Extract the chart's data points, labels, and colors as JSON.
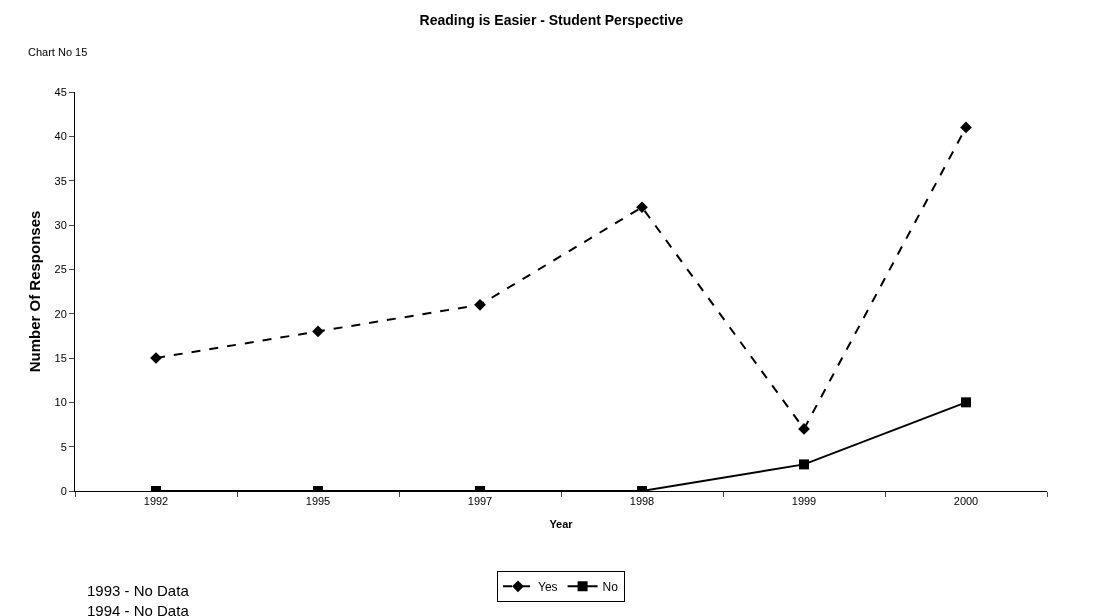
{
  "chart_data": {
    "type": "line",
    "title": "Reading is Easier - Student Perspective",
    "xlabel": "Year",
    "ylabel": "Number Of Responses",
    "annotations": [
      "Chart No 15",
      "1993 - No Data",
      "1994 - No Data"
    ],
    "categories": [
      "1992",
      "1995",
      "1997",
      "1998",
      "1999",
      "2000"
    ],
    "series": [
      {
        "name": "Yes",
        "color": "#000000",
        "values": [
          15,
          18,
          21,
          32,
          7,
          41
        ],
        "marker": "diamond",
        "line_style": "dashed"
      },
      {
        "name": "No",
        "color": "#000000",
        "values": [
          0,
          0,
          0,
          0,
          3,
          10
        ],
        "marker": "square",
        "line_style": "solid"
      }
    ],
    "ylim": [
      0,
      45
    ],
    "yticks": [
      0,
      5,
      10,
      15,
      20,
      25,
      30,
      35,
      40,
      45
    ],
    "grid": false,
    "legend": "bottom"
  }
}
